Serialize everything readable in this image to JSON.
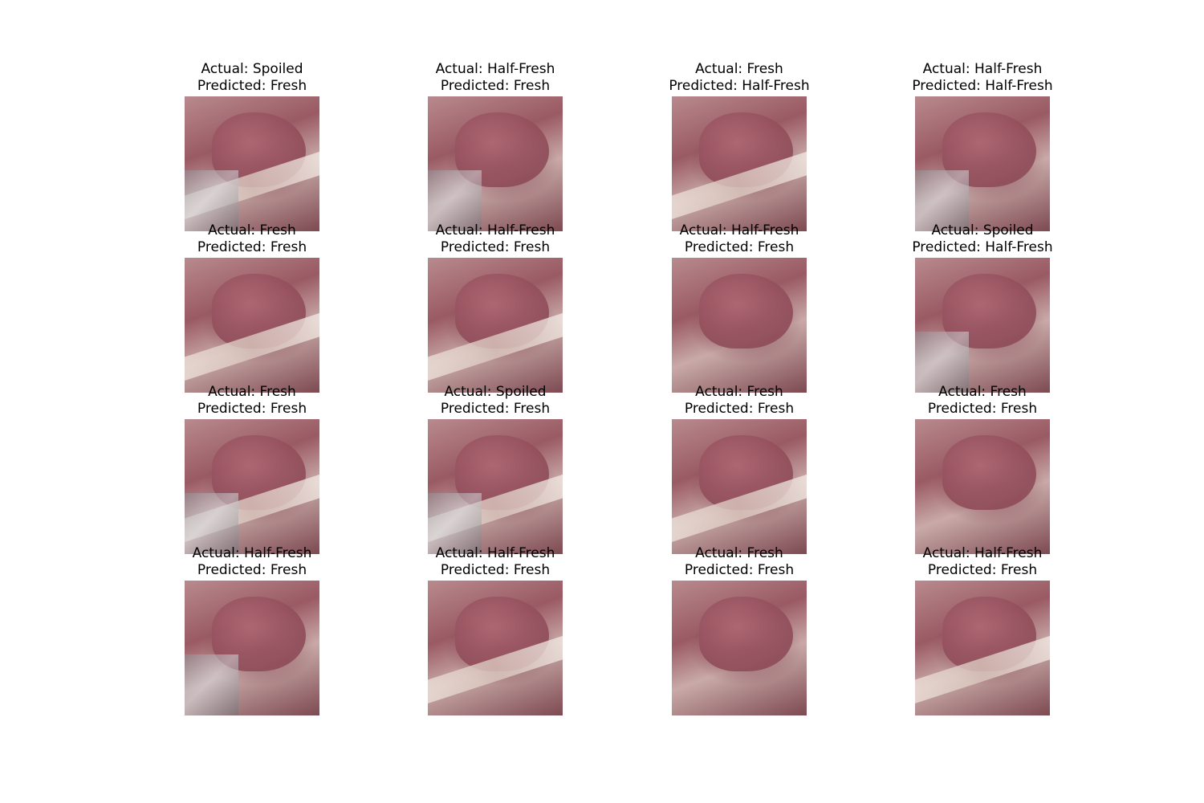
{
  "panels": [
    {
      "actual": "Actual: Spoiled",
      "predicted": "Predicted: Fresh"
    },
    {
      "actual": "Actual: Half-Fresh",
      "predicted": "Predicted: Fresh"
    },
    {
      "actual": "Actual: Fresh",
      "predicted": "Predicted: Half-Fresh"
    },
    {
      "actual": "Actual: Half-Fresh",
      "predicted": "Predicted: Half-Fresh"
    },
    {
      "actual": "Actual: Fresh",
      "predicted": "Predicted: Fresh"
    },
    {
      "actual": "Actual: Half-Fresh",
      "predicted": "Predicted: Fresh"
    },
    {
      "actual": "Actual: Half-Fresh",
      "predicted": "Predicted: Fresh"
    },
    {
      "actual": "Actual: Spoiled",
      "predicted": "Predicted: Half-Fresh"
    },
    {
      "actual": "Actual: Fresh",
      "predicted": "Predicted: Fresh"
    },
    {
      "actual": "Actual: Spoiled",
      "predicted": "Predicted: Fresh"
    },
    {
      "actual": "Actual: Fresh",
      "predicted": "Predicted: Fresh"
    },
    {
      "actual": "Actual: Fresh",
      "predicted": "Predicted: Fresh"
    },
    {
      "actual": "Actual: Half-Fresh",
      "predicted": "Predicted: Fresh"
    },
    {
      "actual": "Actual: Half-Fresh",
      "predicted": "Predicted: Fresh"
    },
    {
      "actual": "Actual: Fresh",
      "predicted": "Predicted: Fresh"
    },
    {
      "actual": "Actual: Half-Fresh",
      "predicted": "Predicted: Fresh"
    }
  ]
}
